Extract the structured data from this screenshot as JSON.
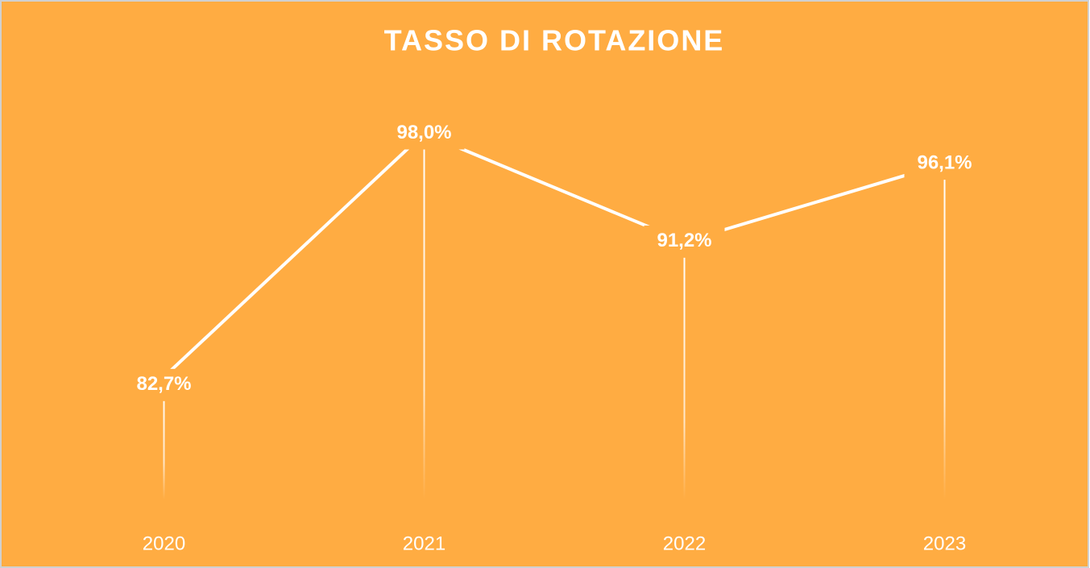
{
  "chart_data": {
    "type": "line",
    "title": "TASSO DI ROTAZIONE",
    "categories": [
      "2020",
      "2021",
      "2022",
      "2023"
    ],
    "values": [
      82.7,
      98.0,
      91.2,
      96.1
    ],
    "value_labels": [
      "82,7%",
      "98,0%",
      "91,2%",
      "96,1%"
    ],
    "color": "#ffffff",
    "background": "#ffac42",
    "ylim": [
      75,
      100
    ],
    "grid": false
  }
}
